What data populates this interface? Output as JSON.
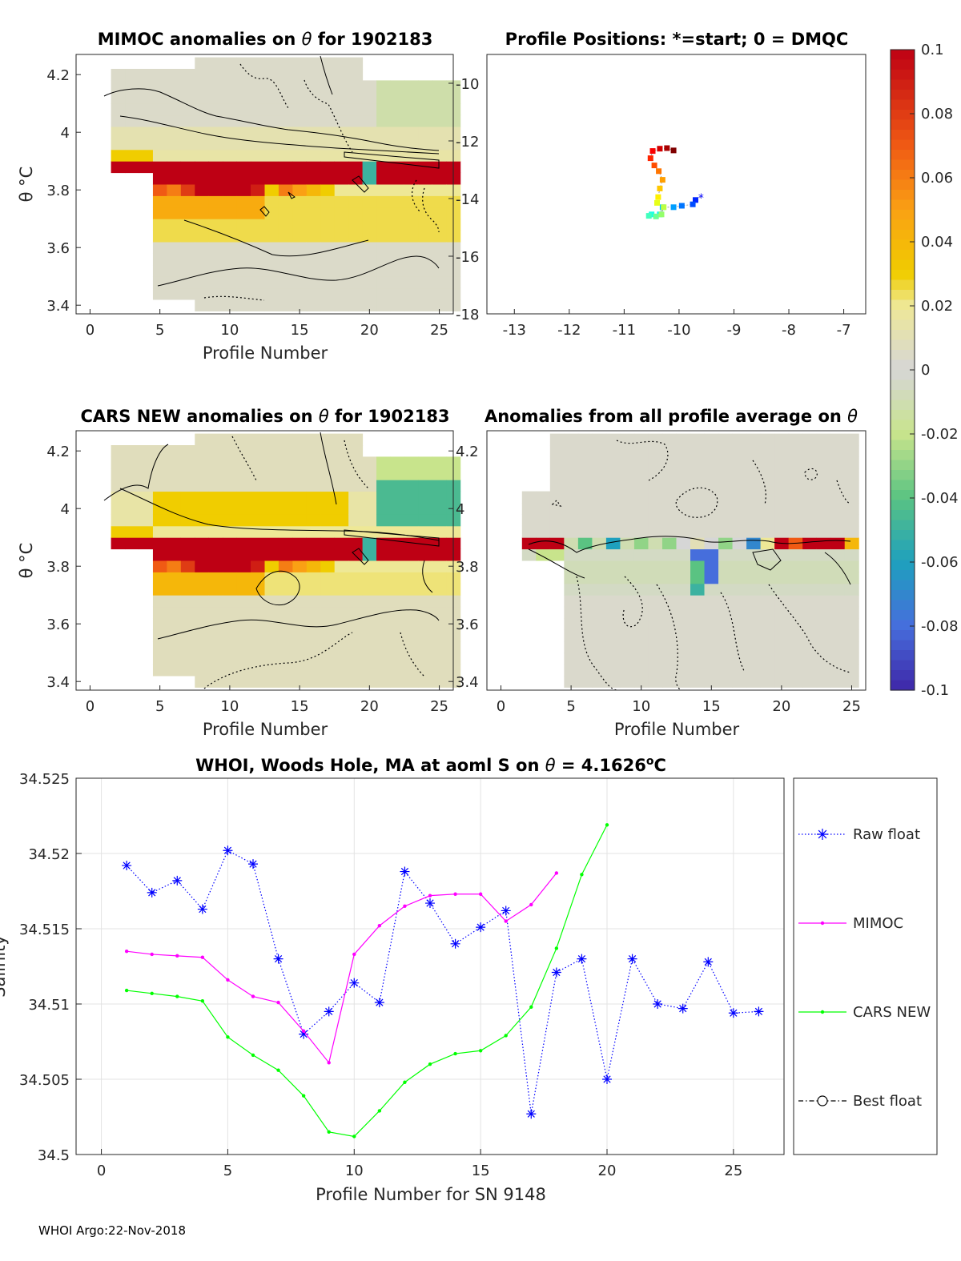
{
  "footer": "WHOI Argo:22-Nov-2018",
  "panels": {
    "mimoc": {
      "title_a": "MIMOC anomalies on ",
      "title_b": "  for 1902183",
      "ylabel": "θ °C",
      "xlabel": "Profile Number",
      "xticks": [
        "0",
        "5",
        "10",
        "15",
        "20",
        "25"
      ],
      "yticks": [
        "3.4",
        "3.6",
        "3.8",
        "4",
        "4.2"
      ]
    },
    "positions": {
      "title": "Profile Positions: *=start; 0 = DMQC",
      "xticks": [
        "-13",
        "-12",
        "-11",
        "-10",
        "-9",
        "-8",
        "-7"
      ],
      "yticks": [
        "-18",
        "-16",
        "-14",
        "-12",
        "-10"
      ]
    },
    "cars": {
      "title_a": "CARS NEW anomalies on ",
      "title_b": " for 1902183",
      "ylabel": "θ °C",
      "xlabel": "Profile Number",
      "xticks": [
        "0",
        "5",
        "10",
        "15",
        "20",
        "25"
      ],
      "yticks": [
        "3.4",
        "3.6",
        "3.8",
        "4",
        "4.2"
      ]
    },
    "allavg": {
      "title_a": "Anomalies from all profile average on ",
      "xlabel": "Profile Number",
      "xticks": [
        "0",
        "5",
        "10",
        "15",
        "20",
        "25"
      ],
      "yticks": [
        "3.4",
        "3.6",
        "3.8",
        "4",
        "4.2"
      ]
    },
    "salinity": {
      "title_a": "WHOI, Woods Hole, MA at aoml S on ",
      "title_b": " = 4.1626",
      "title_c": "C",
      "theta_symbol": "θ",
      "degree_symbol": "o",
      "xlabel": "Profile Number for SN 9148",
      "ylabel": "Salinity",
      "xticks": [
        "0",
        "5",
        "10",
        "15",
        "20",
        "25"
      ],
      "yticks": [
        "34.5",
        "34.505",
        "34.51",
        "34.515",
        "34.52",
        "34.525"
      ]
    }
  },
  "colorbar": {
    "ticks": [
      "0.1",
      "0.08",
      "0.06",
      "0.04",
      "0.02",
      "0",
      "-0.02",
      "-0.04",
      "-0.06",
      "-0.08",
      "-0.1"
    ]
  },
  "chart_data": [
    {
      "type": "line",
      "title": "WHOI, Woods Hole, MA at aoml S on θ = 4.1626°C",
      "xlabel": "Profile Number for SN 9148",
      "ylabel": "Salinity",
      "xlim": [
        -1,
        27
      ],
      "ylim": [
        34.5,
        34.525
      ],
      "grid": true,
      "legend_position": "right",
      "series": [
        {
          "name": "Raw float",
          "color": "#0000ff",
          "style": "dotted",
          "marker": "star",
          "x": [
            1,
            2,
            3,
            4,
            5,
            6,
            7,
            8,
            9,
            10,
            11,
            12,
            13,
            14,
            15,
            16,
            17,
            18,
            19,
            20,
            21,
            22,
            23,
            24,
            25,
            26
          ],
          "y": [
            34.5192,
            34.5174,
            34.5182,
            34.5163,
            34.5202,
            34.5193,
            34.513,
            34.508,
            34.5095,
            34.5114,
            34.5101,
            34.5188,
            34.5167,
            34.514,
            34.5151,
            34.5162,
            34.5027,
            34.5121,
            34.513,
            34.505,
            34.513,
            34.51,
            34.5097,
            34.5128,
            34.5094,
            34.5095
          ]
        },
        {
          "name": "MIMOC",
          "color": "#ff00ff",
          "style": "solid",
          "marker": "dot",
          "x": [
            1,
            2,
            3,
            4,
            5,
            6,
            7,
            8,
            9,
            10,
            11,
            12,
            13,
            14,
            15,
            16,
            17,
            18
          ],
          "y": [
            34.5135,
            34.5133,
            34.5132,
            34.5131,
            34.5116,
            34.5105,
            34.5101,
            34.5082,
            34.5061,
            34.5133,
            34.5152,
            34.5165,
            34.5172,
            34.5173,
            34.5173,
            34.5155,
            34.5166,
            34.5187
          ]
        },
        {
          "name": "CARS NEW",
          "color": "#00ff00",
          "style": "solid",
          "marker": "dot",
          "x": [
            1,
            2,
            3,
            4,
            5,
            6,
            7,
            8,
            9,
            10,
            11,
            12,
            13,
            14,
            15,
            16,
            17,
            18,
            19,
            20
          ],
          "y": [
            34.5109,
            34.5107,
            34.5105,
            34.5102,
            34.5078,
            34.5066,
            34.5056,
            34.5039,
            34.5015,
            34.5012,
            34.5029,
            34.5048,
            34.506,
            34.5067,
            34.5069,
            34.5079,
            34.5098,
            34.5137,
            34.5186,
            34.5219
          ]
        },
        {
          "name": "Best float",
          "color": "#000000",
          "style": "dashdot",
          "marker": "circle",
          "x": [],
          "y": []
        }
      ]
    },
    {
      "type": "scatter",
      "title": "Profile Positions: *=start; 0 = DMQC",
      "xlim": [
        -13.5,
        -6.6
      ],
      "ylim": [
        -18,
        -9
      ],
      "colormap": "jet (start=blue, end=red)",
      "points": [
        {
          "lon": -9.6,
          "lat": -13.95
        },
        {
          "lon": -9.7,
          "lat": -14.05
        },
        {
          "lon": -9.75,
          "lat": -14.2
        },
        {
          "lon": -9.95,
          "lat": -14.25
        },
        {
          "lon": -10.1,
          "lat": -14.3
        },
        {
          "lon": -10.3,
          "lat": -14.3
        },
        {
          "lon": -10.35,
          "lat": -14.55
        },
        {
          "lon": -10.5,
          "lat": -14.55
        },
        {
          "lon": -10.55,
          "lat": -14.6
        },
        {
          "lon": -10.42,
          "lat": -14.62
        },
        {
          "lon": -10.32,
          "lat": -14.55
        },
        {
          "lon": -10.28,
          "lat": -14.3
        },
        {
          "lon": -10.4,
          "lat": -14.15
        },
        {
          "lon": -10.38,
          "lat": -13.95
        },
        {
          "lon": -10.35,
          "lat": -13.65
        },
        {
          "lon": -10.3,
          "lat": -13.35
        },
        {
          "lon": -10.37,
          "lat": -13.05
        },
        {
          "lon": -10.45,
          "lat": -12.85
        },
        {
          "lon": -10.52,
          "lat": -12.6
        },
        {
          "lon": -10.48,
          "lat": -12.35
        },
        {
          "lon": -10.35,
          "lat": -12.27
        },
        {
          "lon": -10.22,
          "lat": -12.25
        },
        {
          "lon": -10.1,
          "lat": -12.33
        }
      ]
    },
    {
      "type": "heatmap",
      "title": "MIMOC anomalies on θ for 1902183",
      "xlabel": "Profile Number",
      "ylabel": "θ °C",
      "xlim": [
        -1,
        26
      ],
      "ylim": [
        3.37,
        4.27
      ],
      "clim": [
        -0.1,
        0.1
      ],
      "note": "theta bands (°C) with anomaly values per profile block"
    },
    {
      "type": "heatmap",
      "title": "CARS NEW anomalies on θ for 1902183",
      "xlabel": "Profile Number",
      "ylabel": "θ °C",
      "xlim": [
        -1,
        26
      ],
      "ylim": [
        3.37,
        4.27
      ],
      "clim": [
        -0.1,
        0.1
      ]
    },
    {
      "type": "heatmap",
      "title": "Anomalies from all profile average on θ",
      "xlabel": "Profile Number",
      "xlim": [
        -1,
        26
      ],
      "ylim": [
        3.37,
        4.27
      ],
      "clim": [
        -0.1,
        0.1
      ]
    }
  ]
}
